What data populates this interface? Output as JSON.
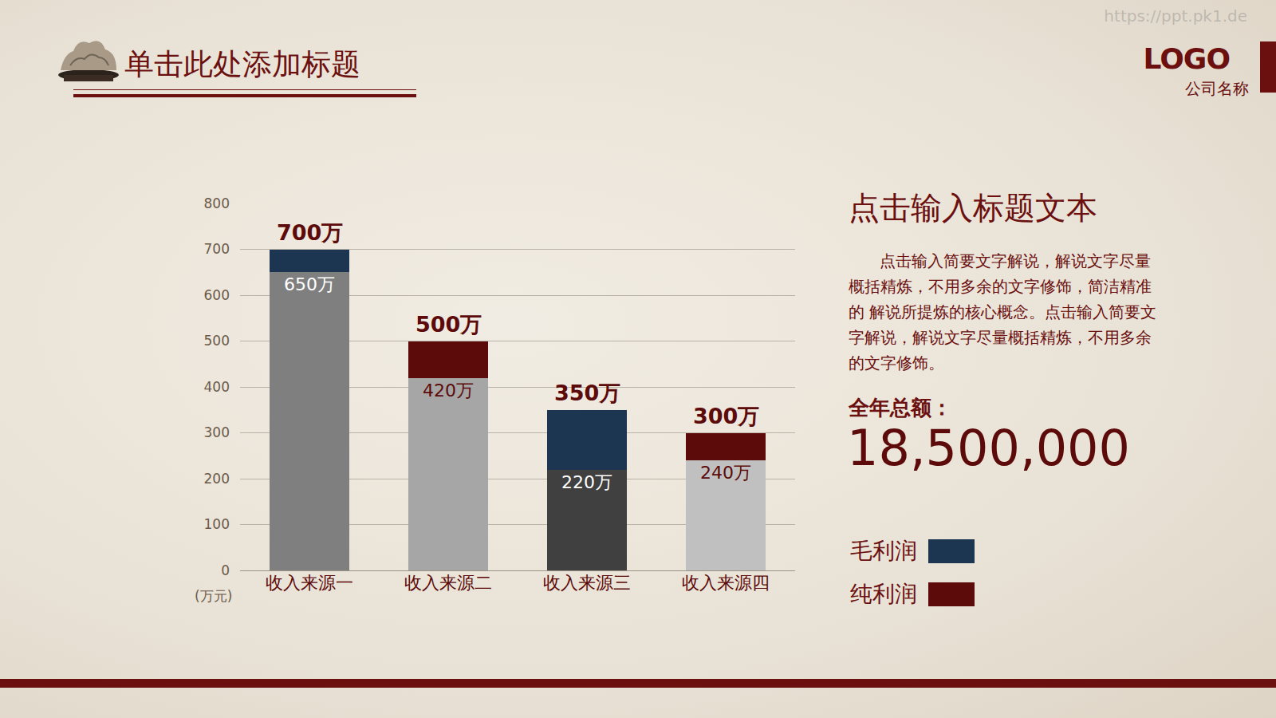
{
  "header": {
    "title": "单击此处添加标题",
    "logo": "LOGO",
    "company": "公司名称",
    "watermark": "https://ppt.pk1.de"
  },
  "chart_data": {
    "type": "bar",
    "stacked": true,
    "grid": true,
    "data_labels": true,
    "categories": [
      "收入来源一",
      "收入来源二",
      "收入来源三",
      "收入来源四"
    ],
    "ylabel": "(万元)",
    "ylim": [
      0,
      800
    ],
    "yticks": [
      0,
      100,
      200,
      300,
      400,
      500,
      600,
      700,
      800
    ],
    "series": [
      {
        "values": [
          650,
          420,
          220,
          240
        ],
        "value_labels": [
          "650万",
          "420万",
          "220万",
          "240万"
        ],
        "colors": [
          "#7f7f7f",
          "#a6a6a6",
          "#404040",
          "#c0c0c0"
        ]
      },
      {
        "values": [
          50,
          80,
          130,
          60
        ],
        "colors": [
          "#1c3551",
          "#5c0a0a",
          "#1c3551",
          "#5c0a0a"
        ]
      }
    ],
    "totals": [
      700,
      500,
      350,
      300
    ],
    "total_labels": [
      "700万",
      "500万",
      "350万",
      "300万"
    ],
    "legend_items": [
      {
        "name": "毛利润",
        "color": "#1c3551"
      },
      {
        "name": "纯利润",
        "color": "#5c0a0a"
      }
    ]
  },
  "panel": {
    "heading": "点击输入标题文本",
    "text": "点击输入简要文字解说，解说文字尽量概括精炼，不用多余的文字修饰，简洁精准的 解说所提炼的核心概念。点击输入简要文字解说，解说文字尽量概括精炼，不用多余的文字修饰。",
    "total_label": "全年总额：",
    "total_value": "18,500,000"
  }
}
